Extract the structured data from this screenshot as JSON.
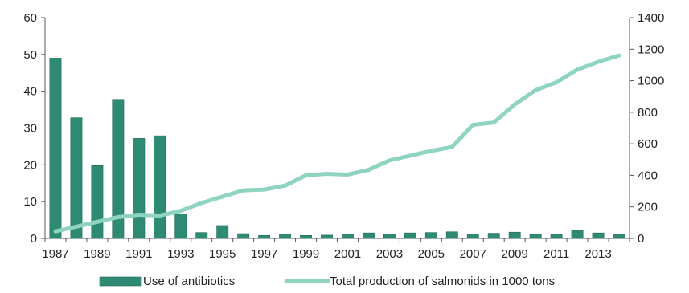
{
  "chart_data": {
    "type": "bar",
    "categories": [
      "1987",
      "1988",
      "1989",
      "1990",
      "1991",
      "1992",
      "1993",
      "1994",
      "1995",
      "1996",
      "1997",
      "1998",
      "1999",
      "2000",
      "2001",
      "2002",
      "2003",
      "2004",
      "2005",
      "2006",
      "2007",
      "2008",
      "2009",
      "2010",
      "2011",
      "2012",
      "2013",
      "2014"
    ],
    "x_tick_labels": [
      "1987",
      "1989",
      "1991",
      "1993",
      "1995",
      "1997",
      "1999",
      "2001",
      "2003",
      "2005",
      "2007",
      "2009",
      "2011",
      "2013"
    ],
    "series": [
      {
        "name": "Use of antibiotics",
        "type": "bar",
        "axis": "left",
        "color": "#2f8a74",
        "values": [
          49,
          32.8,
          19.8,
          37.8,
          27.2,
          27.9,
          6.6,
          1.6,
          3.5,
          1.3,
          0.8,
          1.0,
          0.8,
          0.9,
          1.0,
          1.5,
          1.2,
          1.5,
          1.6,
          1.8,
          1.0,
          1.4,
          1.7,
          1.1,
          1.0,
          2.1,
          1.5,
          1.0
        ]
      },
      {
        "name": "Total production of salmonids in 1000 tons",
        "type": "line",
        "axis": "right",
        "color": "#8fd3c1",
        "values": [
          45,
          75,
          105,
          135,
          150,
          145,
          175,
          225,
          265,
          305,
          310,
          335,
          400,
          410,
          405,
          435,
          495,
          525,
          555,
          580,
          720,
          735,
          850,
          940,
          990,
          1070,
          1120,
          1160
        ]
      }
    ],
    "ylim_left": [
      0,
      60
    ],
    "ylim_right": [
      0,
      1400
    ],
    "yticks_left": [
      "0",
      "10",
      "20",
      "30",
      "40",
      "50",
      "60"
    ],
    "yticks_right": [
      "0",
      "200",
      "400",
      "600",
      "800",
      "1000",
      "1200",
      "1400"
    ],
    "grid": false,
    "legend_position": "bottom"
  }
}
